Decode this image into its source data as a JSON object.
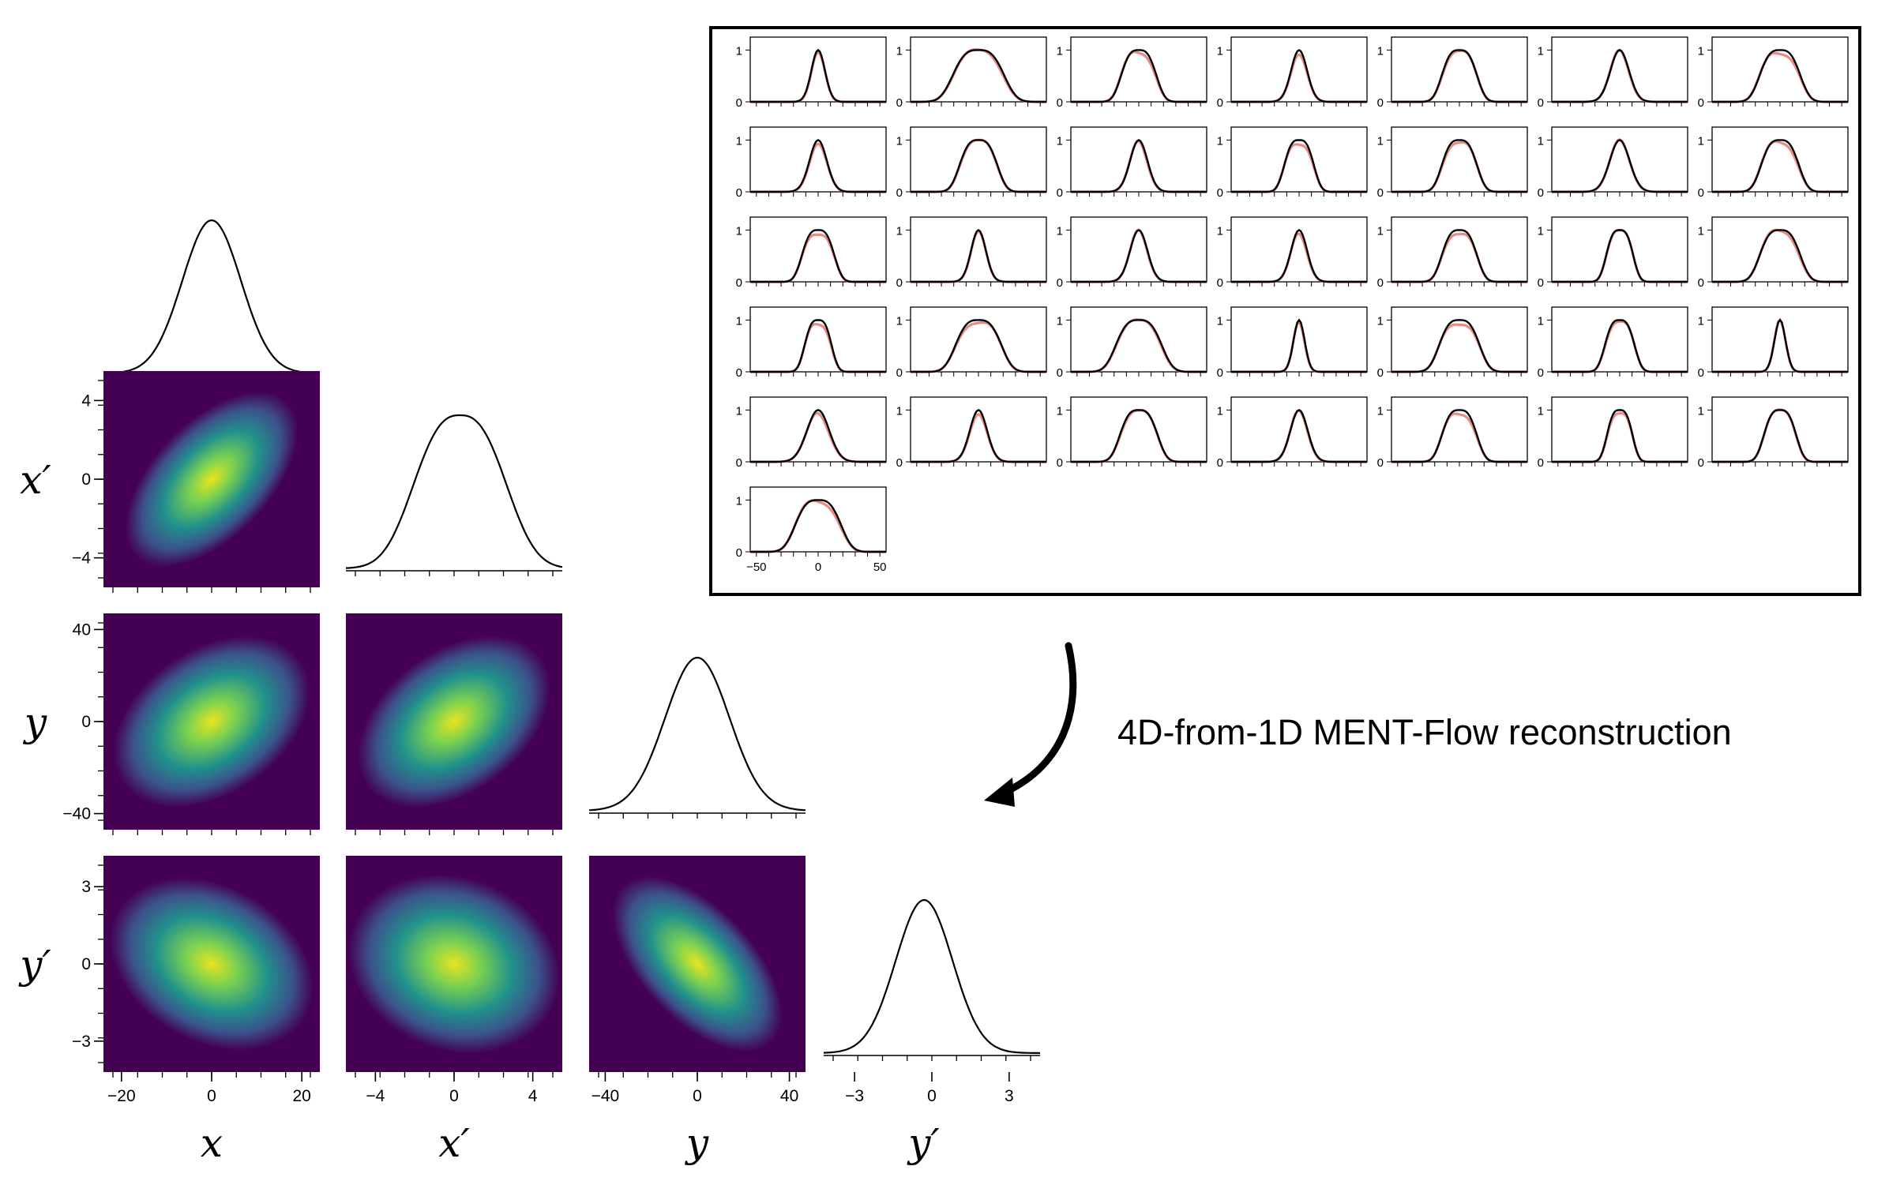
{
  "annotation": {
    "text": "4D-from-1D MENT-Flow reconstruction"
  },
  "colors": {
    "line": "#000000",
    "simulated": "#e88a86",
    "viridis_low": "#440154",
    "viridis_high": "#fde725"
  },
  "chart_data": [
    {
      "type": "corner",
      "dims": [
        {
          "name": "x",
          "label": "x",
          "ticks": [
            -20,
            0,
            20
          ],
          "range": [
            -24,
            24
          ]
        },
        {
          "name": "xp",
          "label": "x′",
          "ticks": [
            -4,
            0,
            4
          ],
          "range": [
            -5.5,
            5.5
          ]
        },
        {
          "name": "y",
          "label": "y",
          "ticks": [
            -40,
            0,
            40
          ],
          "range": [
            -47,
            47
          ]
        },
        {
          "name": "yp",
          "label": "y′",
          "ticks": [
            -3,
            0,
            3
          ],
          "range": [
            -4.2,
            4.2
          ]
        }
      ],
      "marginal_peak_offsets": [
        0.0,
        0.3,
        0.0,
        -0.3
      ],
      "marginal_widths": [
        6.5,
        2.2,
        14,
        1.1
      ],
      "joint_correlations": [
        {
          "pair": [
            "x",
            "x′"
          ],
          "rho": 0.82
        },
        {
          "pair": [
            "x",
            "y"
          ],
          "rho": 0.55
        },
        {
          "pair": [
            "x′",
            "y"
          ],
          "rho": 0.6
        },
        {
          "pair": [
            "x",
            "y′"
          ],
          "rho": -0.45
        },
        {
          "pair": [
            "x′",
            "y′"
          ],
          "rho": -0.3
        },
        {
          "pair": [
            "y",
            "y′"
          ],
          "rho": -0.85
        }
      ]
    },
    {
      "type": "line",
      "title": "",
      "rows": 6,
      "cols": 7,
      "n_profiles": 36,
      "xlim": [
        -55,
        55
      ],
      "ylim": [
        0,
        1.25
      ],
      "xticks": [
        -50,
        0,
        50
      ],
      "yticks": [
        0,
        1
      ],
      "series": [
        {
          "role": "measured",
          "color": "#e88a86"
        },
        {
          "role": "reconstructed",
          "color": "#000000"
        }
      ],
      "profile_widths": [
        5.5,
        19,
        13,
        6.5,
        13,
        7.5,
        15,
        7,
        14,
        7,
        11,
        13,
        8,
        14,
        12,
        6,
        7,
        6.5,
        13,
        10,
        15,
        10,
        17,
        17,
        4.5,
        15,
        11,
        4.5,
        9,
        7,
        14,
        7,
        13,
        9.5,
        12,
        17
      ]
    }
  ]
}
